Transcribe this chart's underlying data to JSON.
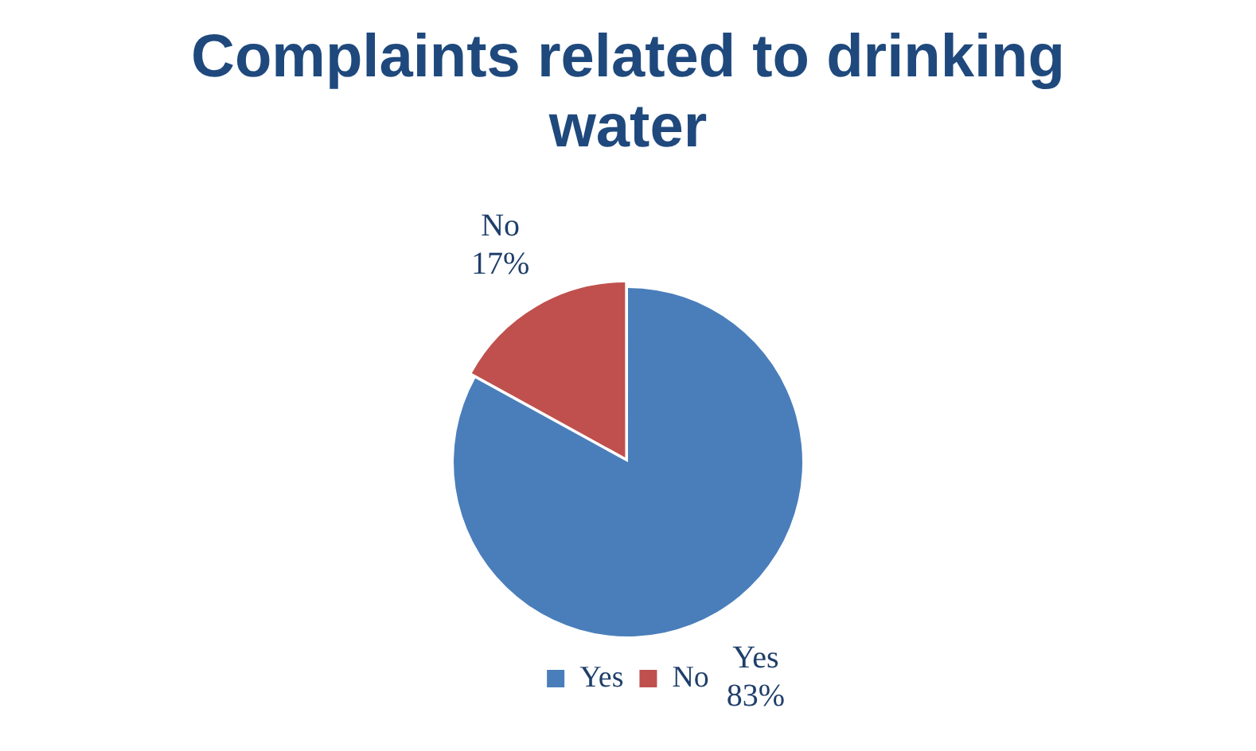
{
  "chart_data": {
    "type": "pie",
    "title": "Complaints related to drinking water",
    "categories": [
      "Yes",
      "No"
    ],
    "values": [
      83,
      17
    ],
    "value_labels": [
      "83%",
      "17%"
    ],
    "colors": [
      "#4a7ebb",
      "#c0504d"
    ],
    "legend": "bottom"
  }
}
